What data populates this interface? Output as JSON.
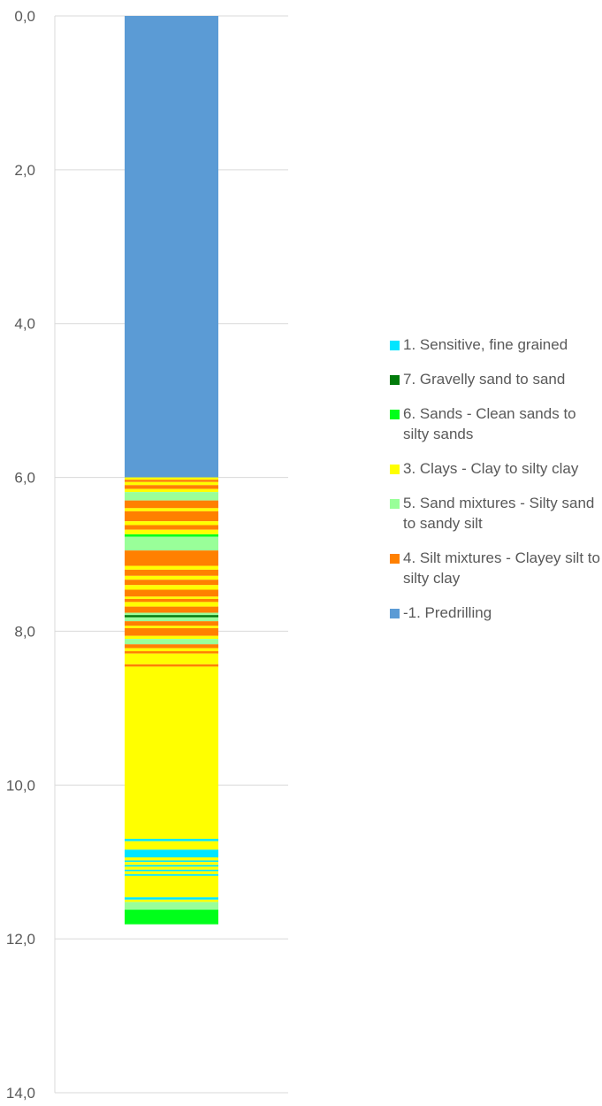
{
  "chart_data": {
    "type": "bar",
    "title": "",
    "xlabel": "",
    "ylabel": "",
    "y_axis": {
      "reversed": true,
      "ylim": [
        0,
        14
      ],
      "major_unit": 2,
      "tick_labels": [
        "0,0",
        "2,0",
        "4,0",
        "6,0",
        "8,0",
        "10,0",
        "12,0",
        "14,0"
      ]
    },
    "grid": true,
    "legend_position": "right",
    "legend": [
      {
        "label": "1. Sensitive, fine grained",
        "color": "#00e5ff"
      },
      {
        "label": "7. Gravelly sand to sand",
        "color": "#007a0a"
      },
      {
        "label": "6. Sands - Clean sands to silty sands",
        "color": "#00ff1a"
      },
      {
        "label": "3. Clays - Clay to silty clay",
        "color": "#ffff00"
      },
      {
        "label": "5. Sand mixtures - Silty sand to sandy silt",
        "color": "#99ff99"
      },
      {
        "label": "4. Silt mixtures - Clayey silt to silty clay",
        "color": "#ff8000"
      },
      {
        "label": "-1. Predrilling",
        "color": "#5b9bd5"
      }
    ],
    "layers_depth_m": [
      {
        "from": 0.0,
        "to": 6.0,
        "class": "-1. Predrilling",
        "color": "#5b9bd5"
      },
      {
        "from": 6.0,
        "to": 6.03,
        "class": "3. Clays - Clay to silty clay",
        "color": "#ffff00"
      },
      {
        "from": 6.03,
        "to": 6.06,
        "class": "4. Silt mixtures - Clayey silt to silty clay",
        "color": "#ff8000"
      },
      {
        "from": 6.06,
        "to": 6.1,
        "class": "3. Clays - Clay to silty clay",
        "color": "#ffff00"
      },
      {
        "from": 6.1,
        "to": 6.15,
        "class": "4. Silt mixtures - Clayey silt to silty clay",
        "color": "#ff8000"
      },
      {
        "from": 6.15,
        "to": 6.19,
        "class": "3. Clays - Clay to silty clay",
        "color": "#ffff00"
      },
      {
        "from": 6.19,
        "to": 6.3,
        "class": "5. Sand mixtures - Silty sand to sandy silt",
        "color": "#99ff99"
      },
      {
        "from": 6.3,
        "to": 6.4,
        "class": "4. Silt mixtures - Clayey silt to silty clay",
        "color": "#ff8000"
      },
      {
        "from": 6.4,
        "to": 6.44,
        "class": "3. Clays - Clay to silty clay",
        "color": "#ffff00"
      },
      {
        "from": 6.44,
        "to": 6.57,
        "class": "4. Silt mixtures - Clayey silt to silty clay",
        "color": "#ff8000"
      },
      {
        "from": 6.57,
        "to": 6.62,
        "class": "3. Clays - Clay to silty clay",
        "color": "#ffff00"
      },
      {
        "from": 6.62,
        "to": 6.68,
        "class": "4. Silt mixtures - Clayey silt to silty clay",
        "color": "#ff8000"
      },
      {
        "from": 6.68,
        "to": 6.74,
        "class": "3. Clays - Clay to silty clay",
        "color": "#ffff00"
      },
      {
        "from": 6.74,
        "to": 6.77,
        "class": "6. Sands - Clean sands to silty sands",
        "color": "#00ff1a"
      },
      {
        "from": 6.77,
        "to": 6.95,
        "class": "5. Sand mixtures - Silty sand to sandy silt",
        "color": "#99ff99"
      },
      {
        "from": 6.95,
        "to": 7.15,
        "class": "4. Silt mixtures - Clayey silt to silty clay",
        "color": "#ff8000"
      },
      {
        "from": 7.15,
        "to": 7.2,
        "class": "3. Clays - Clay to silty clay",
        "color": "#ffff00"
      },
      {
        "from": 7.2,
        "to": 7.28,
        "class": "4. Silt mixtures - Clayey silt to silty clay",
        "color": "#ff8000"
      },
      {
        "from": 7.28,
        "to": 7.33,
        "class": "3. Clays - Clay to silty clay",
        "color": "#ffff00"
      },
      {
        "from": 7.33,
        "to": 7.4,
        "class": "4. Silt mixtures - Clayey silt to silty clay",
        "color": "#ff8000"
      },
      {
        "from": 7.4,
        "to": 7.46,
        "class": "3. Clays - Clay to silty clay",
        "color": "#ffff00"
      },
      {
        "from": 7.46,
        "to": 7.55,
        "class": "4. Silt mixtures - Clayey silt to silty clay",
        "color": "#ff8000"
      },
      {
        "from": 7.55,
        "to": 7.58,
        "class": "3. Clays - Clay to silty clay",
        "color": "#ffff00"
      },
      {
        "from": 7.58,
        "to": 7.62,
        "class": "4. Silt mixtures - Clayey silt to silty clay",
        "color": "#ff8000"
      },
      {
        "from": 7.62,
        "to": 7.68,
        "class": "3. Clays - Clay to silty clay",
        "color": "#ffff00"
      },
      {
        "from": 7.68,
        "to": 7.76,
        "class": "4. Silt mixtures - Clayey silt to silty clay",
        "color": "#ff8000"
      },
      {
        "from": 7.76,
        "to": 7.79,
        "class": "5. Sand mixtures - Silty sand to sandy silt",
        "color": "#99ff99"
      },
      {
        "from": 7.79,
        "to": 7.82,
        "class": "7. Gravelly sand to sand",
        "color": "#007a0a"
      },
      {
        "from": 7.82,
        "to": 7.87,
        "class": "5. Sand mixtures - Silty sand to sandy silt",
        "color": "#99ff99"
      },
      {
        "from": 7.87,
        "to": 7.93,
        "class": "4. Silt mixtures - Clayey silt to silty clay",
        "color": "#ff8000"
      },
      {
        "from": 7.93,
        "to": 7.96,
        "class": "3. Clays - Clay to silty clay",
        "color": "#ffff00"
      },
      {
        "from": 7.96,
        "to": 8.06,
        "class": "4. Silt mixtures - Clayey silt to silty clay",
        "color": "#ff8000"
      },
      {
        "from": 8.06,
        "to": 8.1,
        "class": "3. Clays - Clay to silty clay",
        "color": "#ffff00"
      },
      {
        "from": 8.1,
        "to": 8.17,
        "class": "5. Sand mixtures - Silty sand to sandy silt",
        "color": "#99ff99"
      },
      {
        "from": 8.17,
        "to": 8.22,
        "class": "4. Silt mixtures - Clayey silt to silty clay",
        "color": "#ff8000"
      },
      {
        "from": 8.22,
        "to": 8.26,
        "class": "3. Clays - Clay to silty clay",
        "color": "#ffff00"
      },
      {
        "from": 8.26,
        "to": 8.29,
        "class": "4. Silt mixtures - Clayey silt to silty clay",
        "color": "#ff8000"
      },
      {
        "from": 8.29,
        "to": 8.43,
        "class": "3. Clays - Clay to silty clay",
        "color": "#ffff00"
      },
      {
        "from": 8.43,
        "to": 8.46,
        "class": "4. Silt mixtures - Clayey silt to silty clay",
        "color": "#ff8000"
      },
      {
        "from": 8.46,
        "to": 10.7,
        "class": "3. Clays - Clay to silty clay",
        "color": "#ffff00"
      },
      {
        "from": 10.7,
        "to": 10.73,
        "class": "1. Sensitive, fine grained",
        "color": "#00e5ff"
      },
      {
        "from": 10.73,
        "to": 10.84,
        "class": "3. Clays - Clay to silty clay",
        "color": "#ffff00"
      },
      {
        "from": 10.84,
        "to": 10.94,
        "class": "1. Sensitive, fine grained",
        "color": "#00e5ff"
      },
      {
        "from": 10.94,
        "to": 10.98,
        "class": "3. Clays - Clay to silty clay",
        "color": "#ffff00"
      },
      {
        "from": 10.98,
        "to": 11.0,
        "class": "1. Sensitive, fine grained",
        "color": "#00e5ff"
      },
      {
        "from": 11.0,
        "to": 11.04,
        "class": "3. Clays - Clay to silty clay",
        "color": "#ffff00"
      },
      {
        "from": 11.04,
        "to": 11.06,
        "class": "1. Sensitive, fine grained",
        "color": "#00e5ff"
      },
      {
        "from": 11.06,
        "to": 11.1,
        "class": "3. Clays - Clay to silty clay",
        "color": "#ffff00"
      },
      {
        "from": 11.1,
        "to": 11.12,
        "class": "1. Sensitive, fine grained",
        "color": "#00e5ff"
      },
      {
        "from": 11.12,
        "to": 11.16,
        "class": "3. Clays - Clay to silty clay",
        "color": "#ffff00"
      },
      {
        "from": 11.16,
        "to": 11.18,
        "class": "1. Sensitive, fine grained",
        "color": "#00e5ff"
      },
      {
        "from": 11.18,
        "to": 11.46,
        "class": "3. Clays - Clay to silty clay",
        "color": "#ffff00"
      },
      {
        "from": 11.46,
        "to": 11.49,
        "class": "1. Sensitive, fine grained",
        "color": "#00e5ff"
      },
      {
        "from": 11.49,
        "to": 11.52,
        "class": "3. Clays - Clay to silty clay",
        "color": "#ffff00"
      },
      {
        "from": 11.52,
        "to": 11.62,
        "class": "5. Sand mixtures - Silty sand to sandy silt",
        "color": "#99ff99"
      },
      {
        "from": 11.62,
        "to": 11.81,
        "class": "6. Sands - Clean sands to silty sands",
        "color": "#00ff1a"
      }
    ]
  }
}
